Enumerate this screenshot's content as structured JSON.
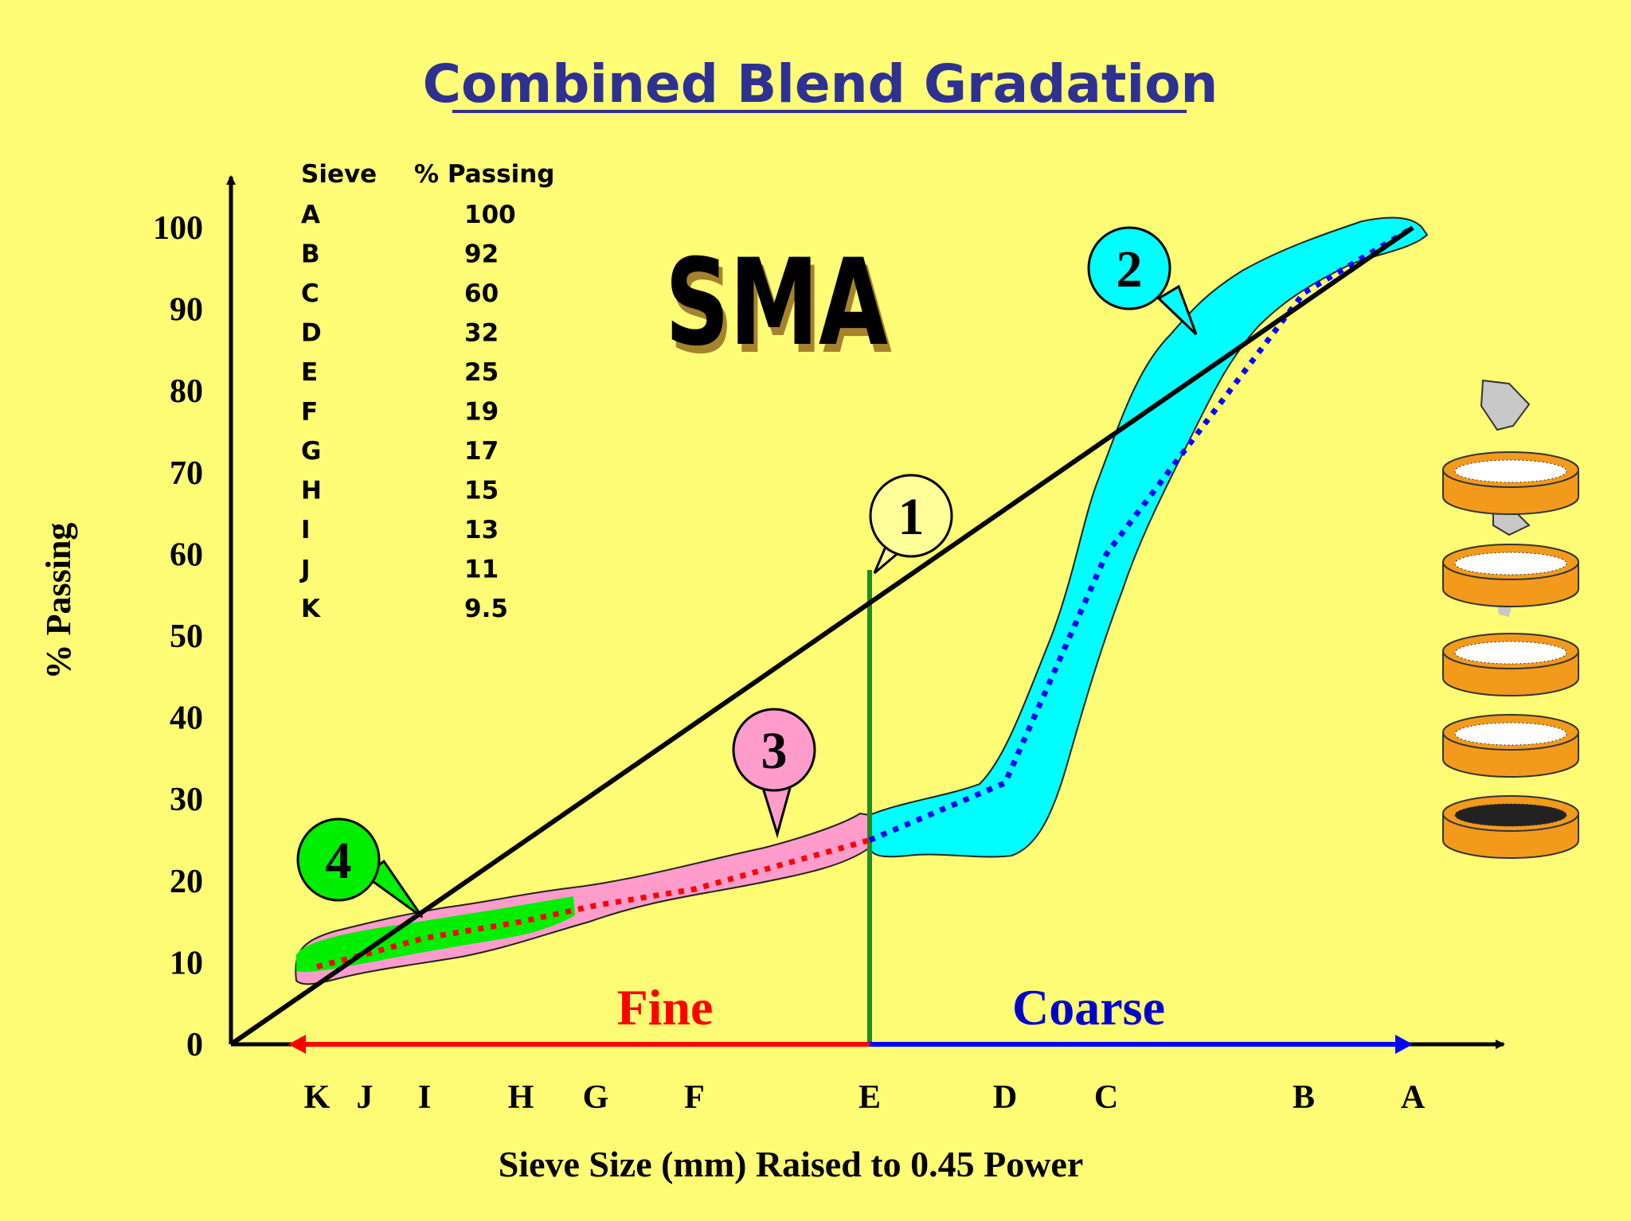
{
  "title": "Combined Blend Gradation",
  "sma_label": "SMA",
  "ylabel": "% Passing",
  "xlabel": "Sieve Size (mm) Raised to 0.45 Power",
  "fine_label": "Fine",
  "coarse_label": "Coarse",
  "callouts": [
    "1",
    "2",
    "3",
    "4"
  ],
  "table": {
    "header_sieve": "Sieve",
    "header_passing": "% Passing",
    "highlight_sieve": "E",
    "rows": [
      {
        "sieve": "A",
        "passing": "100"
      },
      {
        "sieve": "B",
        "passing": "92"
      },
      {
        "sieve": "C",
        "passing": "60"
      },
      {
        "sieve": "D",
        "passing": "32"
      },
      {
        "sieve": "E",
        "passing": "25"
      },
      {
        "sieve": "F",
        "passing": "19"
      },
      {
        "sieve": "G",
        "passing": "17"
      },
      {
        "sieve": "H",
        "passing": "15"
      },
      {
        "sieve": "I",
        "passing": "13"
      },
      {
        "sieve": "J",
        "passing": "11"
      },
      {
        "sieve": "K",
        "passing": "9.5"
      }
    ]
  },
  "colors": {
    "background": "#fdfc74",
    "title": "#2e3192",
    "coarse_band": "#00ffff",
    "coarse_line": "#0000ff",
    "fine_band": "#ff9ccc",
    "fine_line": "#ff0000",
    "filler_band": "#00ee00",
    "divider": "#228b22",
    "max_density_line": "#000000"
  },
  "chart_data": {
    "type": "line",
    "title": "Combined Blend Gradation",
    "xlabel": "Sieve Size (mm) Raised to 0.45 Power",
    "ylabel": "% Passing",
    "ylim": [
      0,
      100
    ],
    "yticks": [
      0,
      10,
      20,
      30,
      40,
      50,
      60,
      70,
      80,
      90,
      100
    ],
    "xticks": [
      "K",
      "J",
      "I",
      "H",
      "G",
      "F",
      "E",
      "D",
      "C",
      "B",
      "A"
    ],
    "grid": false,
    "divider_sieve": "E",
    "series": [
      {
        "x": [
          "K",
          "J",
          "I",
          "H",
          "G",
          "F",
          "E",
          "D",
          "C",
          "B",
          "A"
        ],
        "values": [
          9.5,
          11,
          13,
          15,
          17,
          19,
          25,
          32,
          60,
          92,
          100
        ]
      }
    ],
    "max_density_line": {
      "from": [
        0,
        0
      ],
      "to": [
        "A",
        100
      ]
    }
  }
}
